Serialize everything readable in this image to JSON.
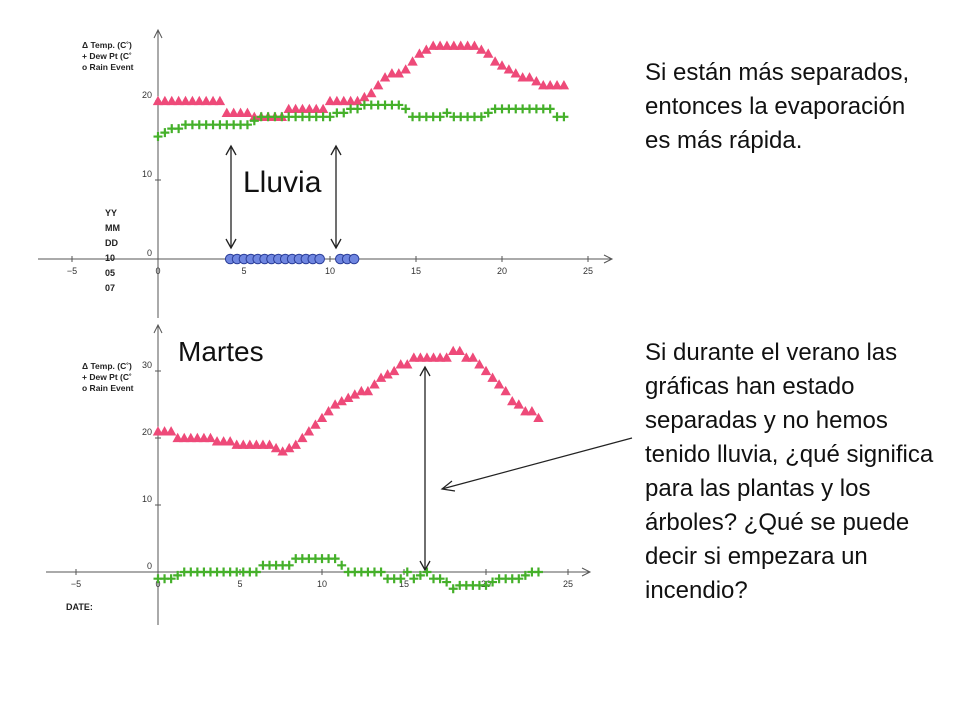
{
  "labels": {
    "lluvia": "Lluvia",
    "martes": "Martes"
  },
  "text": {
    "top": "Si están más separados, entonces la evaporación es más rápida.",
    "bottom": "Si durante el verano las gráficas han estado separadas y no hemos tenido lluvia, ¿qué significa para las plantas y los árboles?  ¿Qué se puede decir si empezara un incendio?"
  },
  "colors": {
    "temp": "#ee4a79",
    "dew": "#45b02a",
    "rain": "#6f86e0",
    "axis": "#555555",
    "annotation": "#222222"
  },
  "chart_data": [
    {
      "type": "scatter",
      "legend": [
        "Δ Temp. (C˚)",
        "+ Dew Pt (C˚",
        "o  Rain Event"
      ],
      "side_labels": [
        "YY",
        "MM",
        "DD",
        "10",
        "05",
        "07"
      ],
      "x_ticks": [
        "−5",
        "0",
        "5",
        "10",
        "15",
        "20",
        "25"
      ],
      "y_ticks": [
        "0",
        "10",
        "20"
      ],
      "xlim": [
        -7,
        27
      ],
      "ylim": [
        -10,
        30
      ],
      "series": [
        {
          "name": "Δ Temp. (C˚)",
          "marker": "triangle",
          "x": [
            0,
            0.4,
            0.8,
            1.2,
            1.6,
            2,
            2.4,
            2.8,
            3.2,
            3.6,
            4,
            4.4,
            4.8,
            5.2,
            5.6,
            6,
            6.4,
            6.8,
            7.2,
            7.6,
            8,
            8.4,
            8.8,
            9.2,
            9.6,
            10,
            10.4,
            10.8,
            11.2,
            11.6,
            12,
            12.4,
            12.8,
            13.2,
            13.6,
            14,
            14.4,
            14.8,
            15.2,
            15.6,
            16,
            16.4,
            16.8,
            17.2,
            17.6,
            18,
            18.4,
            18.8,
            19.2,
            19.6,
            20,
            20.4,
            20.8,
            21.2,
            21.6,
            22,
            22.4,
            22.8,
            23.2,
            23.6
          ],
          "y": [
            20,
            20,
            20,
            20,
            20,
            20,
            20,
            20,
            20,
            20,
            18.5,
            18.5,
            18.5,
            18.5,
            18,
            18,
            18,
            18,
            18,
            19,
            19,
            19,
            19,
            19,
            19,
            20,
            20,
            20,
            20,
            20,
            20.5,
            21,
            22,
            23,
            23.5,
            23.5,
            24,
            25,
            26,
            26.5,
            27,
            27,
            27,
            27,
            27,
            27,
            27,
            26.5,
            26,
            25,
            24.5,
            24,
            23.5,
            23,
            23,
            22.5,
            22,
            22,
            22,
            22
          ]
        },
        {
          "name": "Dew Pt (C˚",
          "marker": "plus",
          "x": [
            0,
            0.4,
            0.8,
            1.2,
            1.6,
            2,
            2.4,
            2.8,
            3.2,
            3.6,
            4,
            4.4,
            4.8,
            5.2,
            5.6,
            6,
            6.4,
            6.8,
            7.2,
            7.6,
            8,
            8.4,
            8.8,
            9.2,
            9.6,
            10,
            10.4,
            10.8,
            11.2,
            11.6,
            12,
            12.4,
            12.8,
            13.2,
            13.6,
            14,
            14.4,
            14.8,
            15.2,
            15.6,
            16,
            16.4,
            16.8,
            17.2,
            17.6,
            18,
            18.4,
            18.8,
            19.2,
            19.6,
            20,
            20.4,
            20.8,
            21.2,
            21.6,
            22,
            22.4,
            22.8,
            23.2,
            23.6
          ],
          "y": [
            15.5,
            16,
            16.5,
            16.5,
            17,
            17,
            17,
            17,
            17,
            17,
            17,
            17,
            17,
            17,
            17.5,
            18,
            18,
            18,
            18,
            18,
            18,
            18,
            18,
            18,
            18,
            18,
            18.5,
            18.5,
            19,
            19,
            19.5,
            19.5,
            19.5,
            19.5,
            19.5,
            19.5,
            19,
            18,
            18,
            18,
            18,
            18,
            18.5,
            18,
            18,
            18,
            18,
            18,
            18.5,
            19,
            19,
            19,
            19,
            19,
            19,
            19,
            19,
            19,
            18,
            18
          ]
        },
        {
          "name": "Rain Event",
          "marker": "circle",
          "x": [
            4.2,
            4.6,
            5,
            5.4,
            5.8,
            6.2,
            6.6,
            7,
            7.4,
            7.8,
            8.2,
            8.6,
            9,
            9.4,
            10.6,
            11,
            11.4
          ],
          "y": [
            0,
            0,
            0,
            0,
            0,
            0,
            0,
            0,
            0,
            0,
            0,
            0,
            0,
            0,
            0,
            0,
            0
          ]
        }
      ]
    },
    {
      "type": "scatter",
      "legend": [
        "Δ Temp. (C˚)",
        "+ Dew Pt (C˚",
        "o  Rain Event"
      ],
      "side_labels": [
        "DATE:"
      ],
      "x_ticks": [
        "−5",
        "0",
        "5",
        "10",
        "15",
        "20",
        "25"
      ],
      "y_ticks": [
        "0",
        "10",
        "20",
        "30"
      ],
      "xlim": [
        -7,
        26
      ],
      "ylim": [
        -7,
        35
      ],
      "series": [
        {
          "name": "Δ Temp. (C˚)",
          "marker": "triangle",
          "x": [
            0,
            0.4,
            0.8,
            1.2,
            1.6,
            2,
            2.4,
            2.8,
            3.2,
            3.6,
            4,
            4.4,
            4.8,
            5.2,
            5.6,
            6,
            6.4,
            6.8,
            7.2,
            7.6,
            8,
            8.4,
            8.8,
            9.2,
            9.6,
            10,
            10.4,
            10.8,
            11.2,
            11.6,
            12,
            12.4,
            12.8,
            13.2,
            13.6,
            14,
            14.4,
            14.8,
            15.2,
            15.6,
            16,
            16.4,
            16.8,
            17.2,
            17.6,
            18,
            18.4,
            18.8,
            19.2,
            19.6,
            20,
            20.4,
            20.8,
            21.2,
            21.6,
            22,
            22.4,
            22.8,
            23.2
          ],
          "y": [
            21,
            21,
            21,
            20,
            20,
            20,
            20,
            20,
            20,
            19.5,
            19.5,
            19.5,
            19,
            19,
            19,
            19,
            19,
            19,
            18.5,
            18,
            18.5,
            19,
            20,
            21,
            22,
            23,
            24,
            25,
            25.5,
            26,
            26.5,
            27,
            27,
            28,
            29,
            29.5,
            30,
            31,
            31,
            32,
            32,
            32,
            32,
            32,
            32,
            33,
            33,
            32,
            32,
            31,
            30,
            29,
            28,
            27,
            25.5,
            25,
            24,
            24,
            23
          ]
        },
        {
          "name": "Dew Pt (C˚",
          "marker": "plus",
          "x": [
            0,
            0.4,
            0.8,
            1.2,
            1.6,
            2,
            2.4,
            2.8,
            3.2,
            3.6,
            4,
            4.4,
            4.8,
            5.2,
            5.6,
            6,
            6.4,
            6.8,
            7.2,
            7.6,
            8,
            8.4,
            8.8,
            9.2,
            9.6,
            10,
            10.4,
            10.8,
            11.2,
            11.6,
            12,
            12.4,
            12.8,
            13.2,
            13.6,
            14,
            14.4,
            14.8,
            15.2,
            15.6,
            16,
            16.4,
            16.8,
            17.2,
            17.6,
            18,
            18.4,
            18.8,
            19.2,
            19.6,
            20,
            20.4,
            20.8,
            21.2,
            21.6,
            22,
            22.4,
            22.8,
            23.2
          ],
          "y": [
            -1,
            -1,
            -1,
            -0.5,
            0,
            0,
            0,
            0,
            0,
            0,
            0,
            0,
            0,
            0,
            0,
            0,
            1,
            1,
            1,
            1,
            1,
            2,
            2,
            2,
            2,
            2,
            2,
            2,
            1,
            0,
            0,
            0,
            0,
            0,
            0,
            -1,
            -1,
            -1,
            0,
            -1,
            -0.5,
            0,
            -1,
            -1,
            -1.5,
            -2.5,
            -2,
            -2,
            -2,
            -2,
            -2,
            -1.5,
            -1,
            -1,
            -1,
            -1,
            -0.5,
            0,
            0
          ]
        }
      ]
    }
  ]
}
